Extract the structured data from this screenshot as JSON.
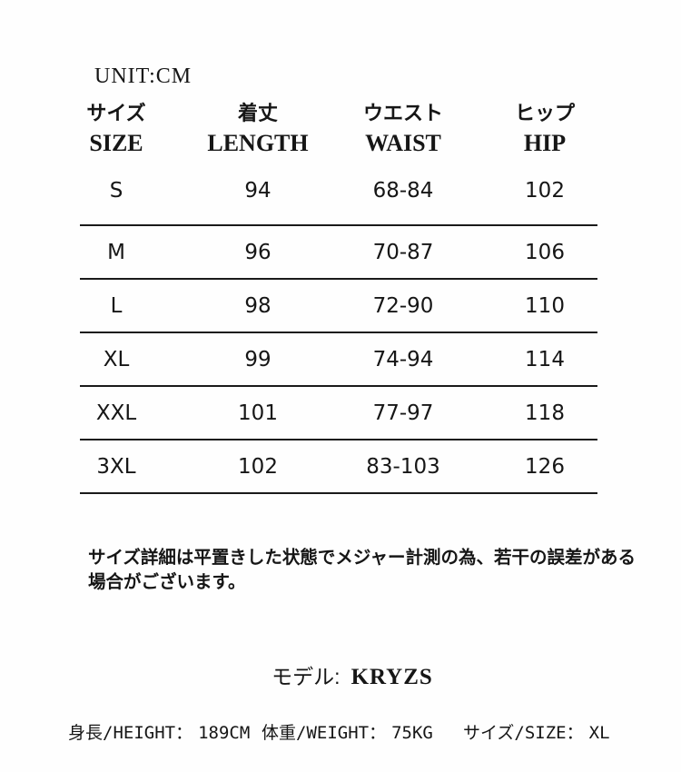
{
  "header": {
    "unit_label": "UNIT:CM"
  },
  "size_chart": {
    "columns": [
      {
        "jp": "サイズ",
        "en": "SIZE"
      },
      {
        "jp": "着丈",
        "en": "LENGTH"
      },
      {
        "jp": "ウエスト",
        "en": "WAIST"
      },
      {
        "jp": "ヒップ",
        "en": "HIP"
      }
    ],
    "rows": [
      {
        "size": "S",
        "length": "94",
        "waist": "68-84",
        "hip": "102"
      },
      {
        "size": "M",
        "length": "96",
        "waist": "70-87",
        "hip": "106"
      },
      {
        "size": "L",
        "length": "98",
        "waist": "72-90",
        "hip": "110"
      },
      {
        "size": "XL",
        "length": "99",
        "waist": "74-94",
        "hip": "114"
      },
      {
        "size": "XXL",
        "length": "101",
        "waist": "77-97",
        "hip": "118"
      },
      {
        "size": "3XL",
        "length": "102",
        "waist": "83-103",
        "hip": "126"
      }
    ]
  },
  "note": {
    "lines": [
      "サイズ詳細は平置きした状態でメジャー計測の為、若干の誤差がある",
      "場合がございます。"
    ]
  },
  "model": {
    "label": "モデル:",
    "name": "KRYZS",
    "height": {
      "label": "身長/HEIGHT：",
      "value": "189CM"
    },
    "weight": {
      "label": "体重/WEIGHT：",
      "value": "75KG"
    },
    "size": {
      "label": "サイズ/SIZE：",
      "value": "XL"
    }
  },
  "colors": {
    "background": "#ffffff",
    "text": "#161616",
    "divider": "#1a1a1a"
  },
  "chart_data": {
    "type": "table",
    "title": "UNIT:CM",
    "units": "cm",
    "columns": [
      "サイズ/SIZE",
      "着丈/LENGTH",
      "ウエスト/WAIST",
      "ヒップ/HIP"
    ],
    "rows": [
      [
        "S",
        "94",
        "68-84",
        "102"
      ],
      [
        "M",
        "96",
        "70-87",
        "106"
      ],
      [
        "L",
        "98",
        "72-90",
        "110"
      ],
      [
        "XL",
        "99",
        "74-94",
        "114"
      ],
      [
        "XXL",
        "101",
        "77-97",
        "118"
      ],
      [
        "3XL",
        "102",
        "83-103",
        "126"
      ]
    ]
  }
}
